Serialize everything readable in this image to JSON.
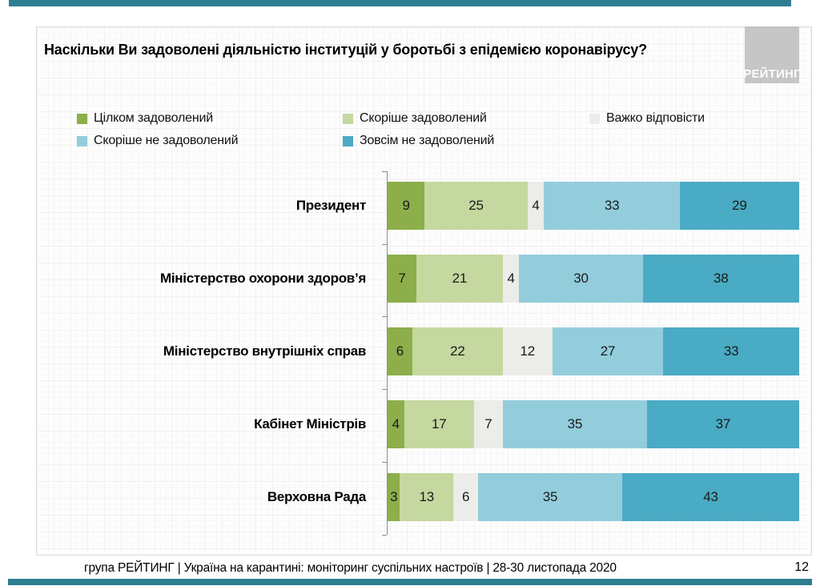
{
  "slide": {
    "title": "Наскільки Ви задоволені діяльністю інституцій у боротьбі з епідемією коронавірусу?",
    "logo_text": "РЕЙТИНГ",
    "footer_text": "група РЕЙТИНГ | Україна на карантині: моніторинг суспільних настроїв | 28-30 листопада 2020",
    "page_number": "12",
    "accent_bar_color": "#2E7E90"
  },
  "chart_data": {
    "type": "bar",
    "orientation": "horizontal",
    "stacked": true,
    "title": "Наскільки Ви задоволені діяльністю інституцій у боротьбі з епідемією коронавірусу?",
    "categories": [
      "Президент",
      "Міністерство охорони здоров’я",
      "Міністерство внутрішніх справ",
      "Кабінет Міністрів",
      "Верховна Рада"
    ],
    "series": [
      {
        "name": "Цілком задоволений",
        "color": "#8CAF4B",
        "values": [
          9,
          7,
          6,
          4,
          3
        ]
      },
      {
        "name": "Скоріше задоволений",
        "color": "#C5D8A0",
        "values": [
          25,
          21,
          22,
          17,
          13
        ]
      },
      {
        "name": "Важко відповісти",
        "color": "#ECECE9",
        "values": [
          4,
          4,
          12,
          7,
          6
        ]
      },
      {
        "name": "Скоріше не задоволений",
        "color": "#93CDDC",
        "values": [
          33,
          30,
          27,
          35,
          35
        ]
      },
      {
        "name": "Зовсім не задоволений",
        "color": "#4AABC4",
        "values": [
          29,
          38,
          33,
          37,
          43
        ]
      }
    ],
    "xlim": [
      0,
      100
    ],
    "value_unit": "%",
    "legend_position": "top-left",
    "grid": false
  }
}
